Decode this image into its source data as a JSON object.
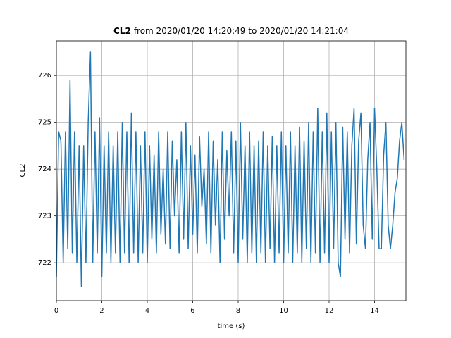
{
  "chart_data": {
    "type": "line",
    "title_bold": "CL2",
    "title": "from 2020/01/20 14:20:49 to 2020/01/20 14:21:04",
    "xlabel": "time (s)",
    "ylabel": "CL2",
    "xlim": [
      0,
      15.38
    ],
    "ylim": [
      721.19,
      726.74
    ],
    "xticks": [
      0,
      2,
      4,
      6,
      8,
      10,
      12,
      14
    ],
    "yticks": [
      722,
      723,
      724,
      725,
      726
    ],
    "grid": true,
    "x": [
      0,
      0.1,
      0.2,
      0.3,
      0.4,
      0.5,
      0.6,
      0.7,
      0.8,
      0.9,
      1,
      1.1,
      1.2,
      1.3,
      1.4,
      1.5,
      1.6,
      1.7,
      1.8,
      1.9,
      2,
      2.1,
      2.2,
      2.3,
      2.4,
      2.5,
      2.6,
      2.7,
      2.8,
      2.9,
      3,
      3.1,
      3.2,
      3.3,
      3.4,
      3.5,
      3.6,
      3.7,
      3.8,
      3.9,
      4,
      4.1,
      4.2,
      4.3,
      4.4,
      4.5,
      4.6,
      4.7,
      4.8,
      4.9,
      5,
      5.1,
      5.2,
      5.3,
      5.4,
      5.5,
      5.6,
      5.7,
      5.8,
      5.9,
      6,
      6.1,
      6.2,
      6.3,
      6.4,
      6.5,
      6.6,
      6.7,
      6.8,
      6.9,
      7,
      7.1,
      7.2,
      7.3,
      7.4,
      7.5,
      7.6,
      7.7,
      7.8,
      7.9,
      8,
      8.1,
      8.2,
      8.3,
      8.4,
      8.5,
      8.6,
      8.7,
      8.8,
      8.9,
      9,
      9.1,
      9.2,
      9.3,
      9.4,
      9.5,
      9.6,
      9.7,
      9.8,
      9.9,
      10,
      10.1,
      10.2,
      10.3,
      10.4,
      10.5,
      10.6,
      10.7,
      10.8,
      10.9,
      11,
      11.1,
      11.2,
      11.3,
      11.4,
      11.5,
      11.6,
      11.7,
      11.8,
      11.9,
      12,
      12.1,
      12.2,
      12.3,
      12.4,
      12.5,
      12.6,
      12.7,
      12.8,
      12.9,
      13,
      13.1,
      13.2,
      13.3,
      13.4,
      13.5,
      13.6,
      13.7,
      13.8,
      13.9,
      14,
      14.1,
      14.2,
      14.3,
      14.4,
      14.5,
      14.6,
      14.7,
      14.8,
      14.9,
      15,
      15.1,
      15.2,
      15.3
    ],
    "series": [
      {
        "name": "CL2",
        "color": "#1f77b4",
        "values": [
          721.7,
          724.8,
          724.6,
          722.0,
          724.8,
          722.3,
          725.9,
          722.2,
          724.8,
          722.0,
          724.5,
          721.5,
          724.5,
          722.0,
          725.0,
          726.5,
          722.0,
          724.8,
          722.2,
          725.1,
          721.7,
          724.5,
          722.2,
          724.8,
          722.0,
          724.5,
          722.2,
          724.8,
          722.0,
          725.0,
          722.2,
          724.8,
          722.0,
          725.2,
          722.2,
          724.8,
          722.0,
          724.5,
          722.2,
          724.8,
          722.0,
          724.5,
          722.5,
          724.3,
          722.2,
          724.8,
          722.6,
          724.0,
          722.4,
          724.8,
          722.3,
          724.6,
          723.0,
          724.2,
          722.2,
          724.8,
          722.5,
          725.0,
          722.3,
          724.5,
          722.6,
          724.3,
          722.2,
          724.7,
          723.2,
          724.0,
          722.4,
          724.8,
          722.2,
          724.6,
          722.8,
          724.2,
          722.0,
          724.8,
          722.5,
          724.4,
          723.0,
          724.8,
          722.2,
          724.6,
          722.0,
          725.0,
          722.5,
          724.5,
          722.0,
          724.8,
          722.2,
          724.5,
          722.0,
          724.6,
          722.2,
          724.8,
          722.0,
          724.5,
          722.3,
          724.7,
          722.0,
          724.5,
          722.2,
          724.8,
          722.0,
          724.5,
          722.2,
          724.8,
          722.0,
          724.5,
          722.2,
          724.9,
          722.0,
          724.6,
          722.3,
          725.0,
          722.0,
          724.8,
          722.2,
          725.3,
          722.0,
          724.8,
          722.2,
          725.2,
          722.0,
          724.8,
          722.3,
          725.0,
          722.0,
          721.7,
          724.9,
          722.5,
          724.8,
          722.2,
          724.5,
          725.3,
          722.4,
          724.6,
          725.2,
          722.8,
          722.3,
          724.2,
          725.0,
          722.5,
          725.3,
          724.0,
          722.3,
          722.3,
          724.3,
          725.0,
          722.8,
          722.3,
          722.8,
          723.5,
          723.8,
          724.6,
          725.0,
          724.2
        ]
      }
    ]
  }
}
